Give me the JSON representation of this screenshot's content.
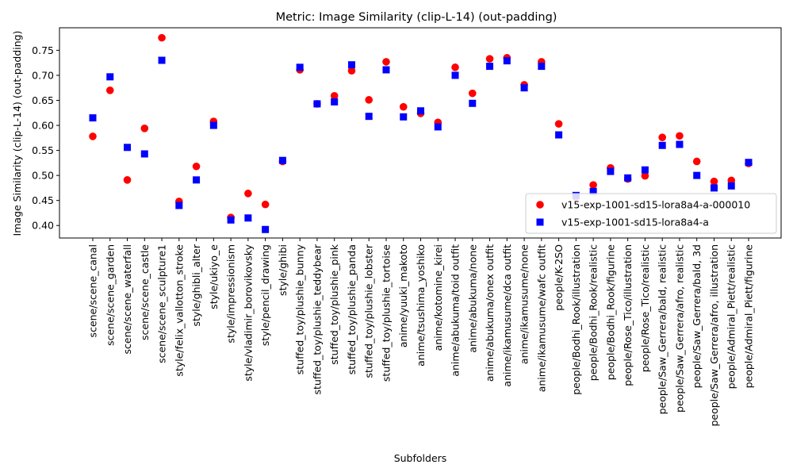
{
  "chart_data": {
    "type": "scatter",
    "title": "Metric: Image Similarity (clip-L-14) (out-padding)",
    "xlabel": "Subfolders",
    "ylabel": "Image Similarity (clip-L-14) (out-padding)",
    "ylim": [
      0.375,
      0.795
    ],
    "yticks": [
      "0.40",
      "0.45",
      "0.50",
      "0.55",
      "0.60",
      "0.65",
      "0.70",
      "0.75"
    ],
    "grid": false,
    "legend_position": "lower right",
    "categories": [
      "scene/scene_canal",
      "scene/scene_garden",
      "scene/scene_waterfall",
      "scene/scene_castle",
      "scene/scene_sculpture1",
      "style/felix_vallotton_stroke",
      "style/ghibli_alter",
      "style/ukiyo_e",
      "style/impressionism",
      "style/vladimir_borovikovsky",
      "style/pencil_drawing",
      "style/ghibi",
      "stuffed_toy/plushie_bunny",
      "stuffed_toy/plushie_teddybear",
      "stuffed_toy/plushie_pink",
      "stuffed_toy/plushie_panda",
      "stuffed_toy/plushie_lobster",
      "stuffed_toy/plushie_tortoise",
      "anime/yuuki_makoto",
      "anime/tsushima_yoshiko",
      "anime/kotomine_kirei",
      "anime/abukuma/toid outfit",
      "anime/abukuma/none",
      "anime/abukuma/onex outfit",
      "anime/ikamusume/dca outfit",
      "anime/ikamusume/none",
      "anime/ikamusume/wafc outfit",
      "people/K-2SO",
      "people/Bodhi_Rook/illustration",
      "people/Bodhi_Rook/realistic",
      "people/Bodhi_Rook/figurine",
      "people/Rose_Tico/illustration",
      "people/Rose_Tico/realistic",
      "people/Saw_Gerrera/bald, realistic",
      "people/Saw_Gerrera/afro, realistic",
      "people/Saw_Gerrera/bald, 3d",
      "people/Saw_Gerrera/afro, illustration",
      "people/Admiral_Piett/realistic",
      "people/Admiral_Piett/figurine"
    ],
    "series": [
      {
        "name": "v15-exp-1001-sd15-lora8a4-a-000010",
        "color": "#ff0000",
        "marker": "circle",
        "values": [
          0.578,
          0.67,
          0.491,
          0.594,
          0.775,
          0.448,
          0.518,
          0.608,
          0.416,
          0.464,
          0.442,
          0.528,
          0.711,
          0.643,
          0.659,
          0.709,
          0.651,
          0.727,
          0.637,
          0.624,
          0.606,
          0.716,
          0.664,
          0.733,
          0.735,
          0.681,
          0.727,
          0.603,
          0.457,
          0.481,
          0.515,
          0.493,
          0.499,
          0.576,
          0.579,
          0.528,
          0.488,
          0.49,
          0.524
        ]
      },
      {
        "name": "v15-exp-1001-sd15-lora8a4-a",
        "color": "#0000ff",
        "marker": "square",
        "values": [
          0.615,
          0.697,
          0.556,
          0.543,
          0.73,
          0.44,
          0.491,
          0.6,
          0.411,
          0.415,
          0.392,
          0.53,
          0.716,
          0.643,
          0.647,
          0.721,
          0.618,
          0.711,
          0.617,
          0.629,
          0.597,
          0.7,
          0.644,
          0.718,
          0.729,
          0.675,
          0.718,
          0.581,
          0.46,
          0.468,
          0.508,
          0.495,
          0.511,
          0.56,
          0.562,
          0.5,
          0.475,
          0.479,
          0.526
        ]
      }
    ]
  }
}
